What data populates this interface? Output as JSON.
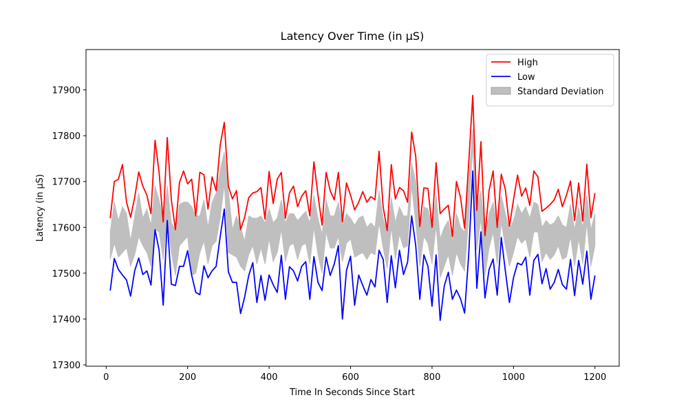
{
  "chart_data": {
    "type": "line",
    "title": "Latency Over Time (in µS)",
    "x_label": "Time In Seconds Since Start",
    "y_label": "Latency (in µS)",
    "x": [
      10,
      20,
      30,
      40,
      50,
      60,
      70,
      80,
      90,
      100,
      110,
      120,
      130,
      140,
      150,
      160,
      170,
      180,
      190,
      200,
      210,
      220,
      230,
      240,
      250,
      260,
      270,
      280,
      290,
      300,
      310,
      320,
      330,
      340,
      350,
      360,
      370,
      380,
      390,
      400,
      410,
      420,
      430,
      440,
      450,
      460,
      470,
      480,
      490,
      500,
      510,
      520,
      530,
      540,
      550,
      560,
      570,
      580,
      590,
      600,
      610,
      620,
      630,
      640,
      650,
      660,
      670,
      680,
      690,
      700,
      710,
      720,
      730,
      740,
      750,
      760,
      770,
      780,
      790,
      800,
      810,
      820,
      830,
      840,
      850,
      860,
      870,
      880,
      890,
      900,
      910,
      920,
      930,
      940,
      950,
      960,
      970,
      980,
      990,
      1000,
      1010,
      1020,
      1030,
      1040,
      1050,
      1060,
      1070,
      1080,
      1090,
      1100,
      1110,
      1120,
      1130,
      1140,
      1150,
      1160,
      1170,
      1180,
      1190,
      1200
    ],
    "band": {
      "name": "Standard Deviation",
      "color": "#bfbfbf",
      "upper": [
        17590,
        17655,
        17615,
        17645,
        17630,
        17570,
        17625,
        17675,
        17620,
        17640,
        17605,
        17690,
        17660,
        17615,
        17690,
        17610,
        17595,
        17650,
        17655,
        17655,
        17645,
        17625,
        17625,
        17660,
        17600,
        17655,
        17675,
        17725,
        17765,
        17680,
        17595,
        17625,
        17600,
        17570,
        17625,
        17620,
        17620,
        17625,
        17610,
        17640,
        17610,
        17620,
        17660,
        17610,
        17630,
        17630,
        17615,
        17625,
        17635,
        17610,
        17670,
        17620,
        17585,
        17660,
        17625,
        17625,
        17655,
        17605,
        17630,
        17620,
        17605,
        17620,
        17625,
        17600,
        17610,
        17600,
        17680,
        17620,
        17590,
        17665,
        17610,
        17645,
        17625,
        17625,
        17740,
        17700,
        17595,
        17645,
        17640,
        17600,
        17670,
        17575,
        17600,
        17615,
        17570,
        17630,
        17600,
        17590,
        17700,
        17815,
        17640,
        17680,
        17580,
        17630,
        17655,
        17600,
        17670,
        17630,
        17595,
        17615,
        17650,
        17630,
        17645,
        17620,
        17655,
        17650,
        17600,
        17615,
        17605,
        17610,
        17625,
        17605,
        17600,
        17650,
        17595,
        17645,
        17600,
        17670,
        17595,
        17630
      ],
      "lower": [
        17530,
        17565,
        17535,
        17545,
        17555,
        17515,
        17540,
        17580,
        17560,
        17545,
        17515,
        17595,
        17590,
        17530,
        17620,
        17545,
        17495,
        17560,
        17570,
        17580,
        17495,
        17500,
        17545,
        17570,
        17520,
        17560,
        17570,
        17620,
        17695,
        17545,
        17540,
        17535,
        17515,
        17505,
        17540,
        17560,
        17520,
        17555,
        17520,
        17575,
        17525,
        17545,
        17595,
        17525,
        17560,
        17565,
        17530,
        17560,
        17565,
        17520,
        17600,
        17540,
        17500,
        17590,
        17555,
        17555,
        17580,
        17525,
        17565,
        17575,
        17535,
        17540,
        17545,
        17530,
        17545,
        17540,
        17610,
        17555,
        17510,
        17600,
        17530,
        17585,
        17555,
        17560,
        17690,
        17610,
        17515,
        17580,
        17565,
        17520,
        17605,
        17490,
        17515,
        17540,
        17495,
        17545,
        17520,
        17505,
        17620,
        17780,
        17550,
        17620,
        17495,
        17555,
        17590,
        17520,
        17610,
        17560,
        17515,
        17545,
        17580,
        17565,
        17575,
        17535,
        17590,
        17590,
        17525,
        17545,
        17530,
        17540,
        17560,
        17530,
        17535,
        17580,
        17515,
        17575,
        17520,
        17610,
        17515,
        17560
      ]
    },
    "series": [
      {
        "name": "High",
        "color": "#ff0000",
        "values": [
          17620,
          17700,
          17705,
          17737,
          17655,
          17622,
          17665,
          17721,
          17690,
          17670,
          17630,
          17790,
          17720,
          17612,
          17796,
          17660,
          17595,
          17698,
          17723,
          17695,
          17705,
          17625,
          17720,
          17715,
          17640,
          17710,
          17680,
          17780,
          17829,
          17690,
          17662,
          17680,
          17595,
          17622,
          17665,
          17675,
          17678,
          17687,
          17618,
          17722,
          17652,
          17705,
          17720,
          17620,
          17675,
          17690,
          17645,
          17668,
          17680,
          17625,
          17743,
          17670,
          17605,
          17720,
          17680,
          17660,
          17720,
          17612,
          17697,
          17670,
          17638,
          17655,
          17678,
          17655,
          17667,
          17660,
          17766,
          17645,
          17593,
          17737,
          17662,
          17687,
          17680,
          17655,
          17808,
          17755,
          17602,
          17686,
          17685,
          17600,
          17741,
          17630,
          17640,
          17648,
          17580,
          17700,
          17665,
          17598,
          17740,
          17888,
          17637,
          17787,
          17582,
          17680,
          17723,
          17600,
          17716,
          17683,
          17602,
          17660,
          17714,
          17668,
          17686,
          17648,
          17723,
          17710,
          17635,
          17642,
          17650,
          17660,
          17683,
          17645,
          17670,
          17701,
          17615,
          17697,
          17614,
          17738,
          17621,
          17675
        ]
      },
      {
        "name": "Low",
        "color": "#0000ff",
        "values": [
          17462,
          17532,
          17508,
          17496,
          17485,
          17450,
          17505,
          17533,
          17497,
          17505,
          17474,
          17595,
          17550,
          17430,
          17615,
          17476,
          17473,
          17515,
          17515,
          17549,
          17495,
          17458,
          17453,
          17516,
          17490,
          17505,
          17515,
          17580,
          17640,
          17503,
          17480,
          17480,
          17412,
          17448,
          17495,
          17523,
          17436,
          17495,
          17441,
          17496,
          17475,
          17458,
          17539,
          17443,
          17514,
          17505,
          17483,
          17515,
          17525,
          17443,
          17536,
          17480,
          17462,
          17535,
          17495,
          17520,
          17560,
          17400,
          17506,
          17537,
          17430,
          17496,
          17473,
          17452,
          17486,
          17470,
          17550,
          17530,
          17436,
          17538,
          17468,
          17550,
          17497,
          17524,
          17625,
          17560,
          17443,
          17540,
          17515,
          17428,
          17540,
          17397,
          17472,
          17502,
          17443,
          17463,
          17444,
          17413,
          17540,
          17723,
          17467,
          17590,
          17446,
          17508,
          17531,
          17452,
          17578,
          17505,
          17436,
          17490,
          17522,
          17518,
          17535,
          17452,
          17528,
          17541,
          17477,
          17510,
          17465,
          17480,
          17508,
          17475,
          17465,
          17530,
          17451,
          17528,
          17476,
          17548,
          17443,
          17495
        ]
      }
    ],
    "xlim": [
      -49.5,
      1259.5
    ],
    "ylim": [
      17297,
      17988
    ],
    "xticks": [
      0,
      200,
      400,
      600,
      800,
      1000,
      1200
    ],
    "yticks": [
      17300,
      17400,
      17500,
      17600,
      17700,
      17800,
      17900
    ],
    "legend": "upper right"
  }
}
